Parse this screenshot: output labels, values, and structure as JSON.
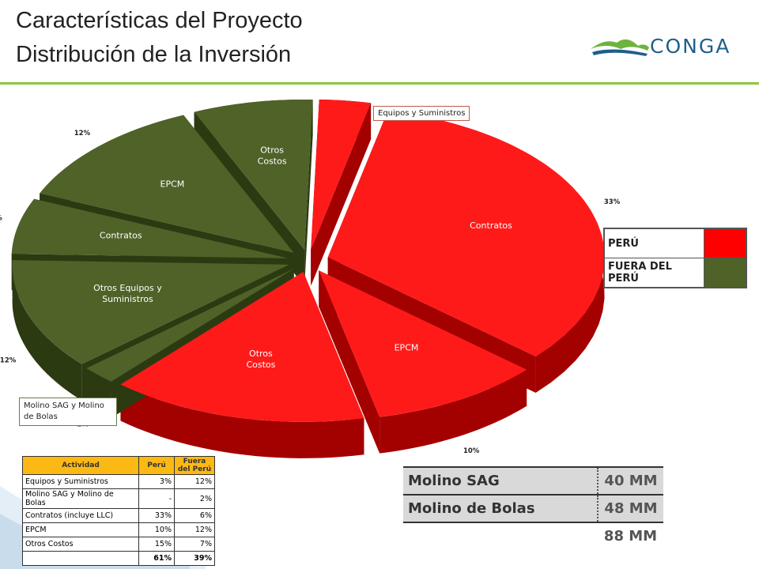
{
  "header": {
    "title_line1": "Características del Proyecto",
    "title_line2": "Distribución de la Inversión",
    "logo_text": "CONGA"
  },
  "chart_data": {
    "type": "pie",
    "three_d": true,
    "exploded": true,
    "slices": [
      {
        "label": "",
        "value": 3,
        "pct_label": "3%",
        "group": "PERÚ",
        "color": "#ff1a1a"
      },
      {
        "label": "Contratos",
        "value": 33,
        "pct_label": "33%",
        "group": "PERÚ",
        "color": "#ff1a1a"
      },
      {
        "label": "EPCM",
        "value": 10,
        "pct_label": "10%",
        "group": "PERÚ",
        "color": "#ff1a1a"
      },
      {
        "label": "Otros Costos",
        "value": 15,
        "pct_label": "15%",
        "group": "PERÚ",
        "color": "#ff1a1a"
      },
      {
        "label": "",
        "value": 2,
        "pct_label": "2%",
        "group": "FUERA DEL PERÚ",
        "color": "#4f6228"
      },
      {
        "label": "Otros Equipos y Suministros",
        "value": 12,
        "pct_label": "12%",
        "group": "FUERA DEL PERÚ",
        "color": "#4f6228"
      },
      {
        "label": "Contratos",
        "value": 6,
        "pct_label": "6%",
        "group": "FUERA DEL PERÚ",
        "color": "#4f6228"
      },
      {
        "label": "EPCM",
        "value": 12,
        "pct_label": "12%",
        "group": "FUERA DEL PERÚ",
        "color": "#4f6228"
      },
      {
        "label": "Otros Costos",
        "value": 7,
        "pct_label": "7%",
        "group": "FUERA DEL PERÚ",
        "color": "#4f6228"
      }
    ],
    "callouts": [
      "Equipos y Suministros",
      "Molino SAG y Molino de Bolas"
    ],
    "legend": [
      {
        "label": "PERÚ",
        "color": "#ff0000"
      },
      {
        "label": "FUERA DEL PERÚ",
        "color": "#4f6228"
      }
    ],
    "legend_position": "right"
  },
  "activity_table": {
    "headers": [
      "Actividad",
      "Perú",
      "Fuera del Perú"
    ],
    "rows": [
      [
        "Equipos y Suministros",
        "3%",
        "12%"
      ],
      [
        "Molino SAG y Molino de Bolas",
        "-",
        "2%"
      ],
      [
        "Contratos (incluye LLC)",
        "33%",
        "6%"
      ],
      [
        "EPCM",
        "10%",
        "12%"
      ],
      [
        "Otros Costos",
        "15%",
        "7%"
      ]
    ],
    "totals": [
      "",
      "61%",
      "39%"
    ]
  },
  "mill_table": {
    "rows": [
      {
        "label": "Molino SAG",
        "value": "40 MM"
      },
      {
        "label": "Molino de Bolas",
        "value": "48 MM"
      }
    ],
    "total": "88 MM"
  }
}
